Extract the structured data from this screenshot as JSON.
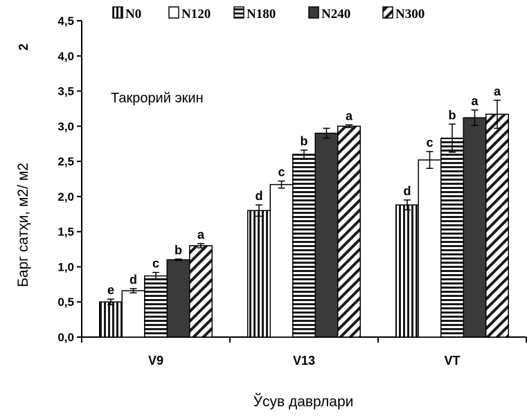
{
  "chart_data": {
    "type": "bar",
    "ylabel": "Барг сатҳи, м2/ м2",
    "ylabel_extra": "2",
    "xlabel": "Ўсув даврлари",
    "annotation": "Такрорий экин",
    "categories": [
      "V9",
      "V13",
      "VT"
    ],
    "ylim": [
      0,
      4.5
    ],
    "yticks": [
      "0,0",
      "0,5",
      "1,0",
      "1,5",
      "2,0",
      "2,5",
      "3,0",
      "3,5",
      "4,0",
      "4,5"
    ],
    "legend_position": "top",
    "grid": false,
    "series": [
      {
        "name": "N0",
        "pattern": "vertical-stripes",
        "values": [
          0.5,
          1.8,
          1.88
        ],
        "errors": [
          0.04,
          0.08,
          0.07
        ],
        "letters": [
          "e",
          "d",
          "d"
        ]
      },
      {
        "name": "N120",
        "pattern": "white",
        "values": [
          0.66,
          2.17,
          2.52
        ],
        "errors": [
          0.03,
          0.05,
          0.12
        ],
        "letters": [
          "d",
          "c",
          "c"
        ]
      },
      {
        "name": "N180",
        "pattern": "horizontal-stripes",
        "values": [
          0.87,
          2.6,
          2.83
        ],
        "errors": [
          0.05,
          0.06,
          0.2
        ],
        "letters": [
          "c",
          "b",
          "b"
        ]
      },
      {
        "name": "N240",
        "pattern": "solid-dark",
        "values": [
          1.1,
          2.9,
          3.12
        ],
        "errors": [
          0.01,
          0.07,
          0.11
        ],
        "letters": [
          "b",
          "",
          "a"
        ]
      },
      {
        "name": "N300",
        "pattern": "diagonal-stripes",
        "values": [
          1.3,
          3.0,
          3.17
        ],
        "errors": [
          0.03,
          0.02,
          0.2
        ],
        "letters": [
          "a",
          "a",
          "a"
        ]
      }
    ]
  }
}
